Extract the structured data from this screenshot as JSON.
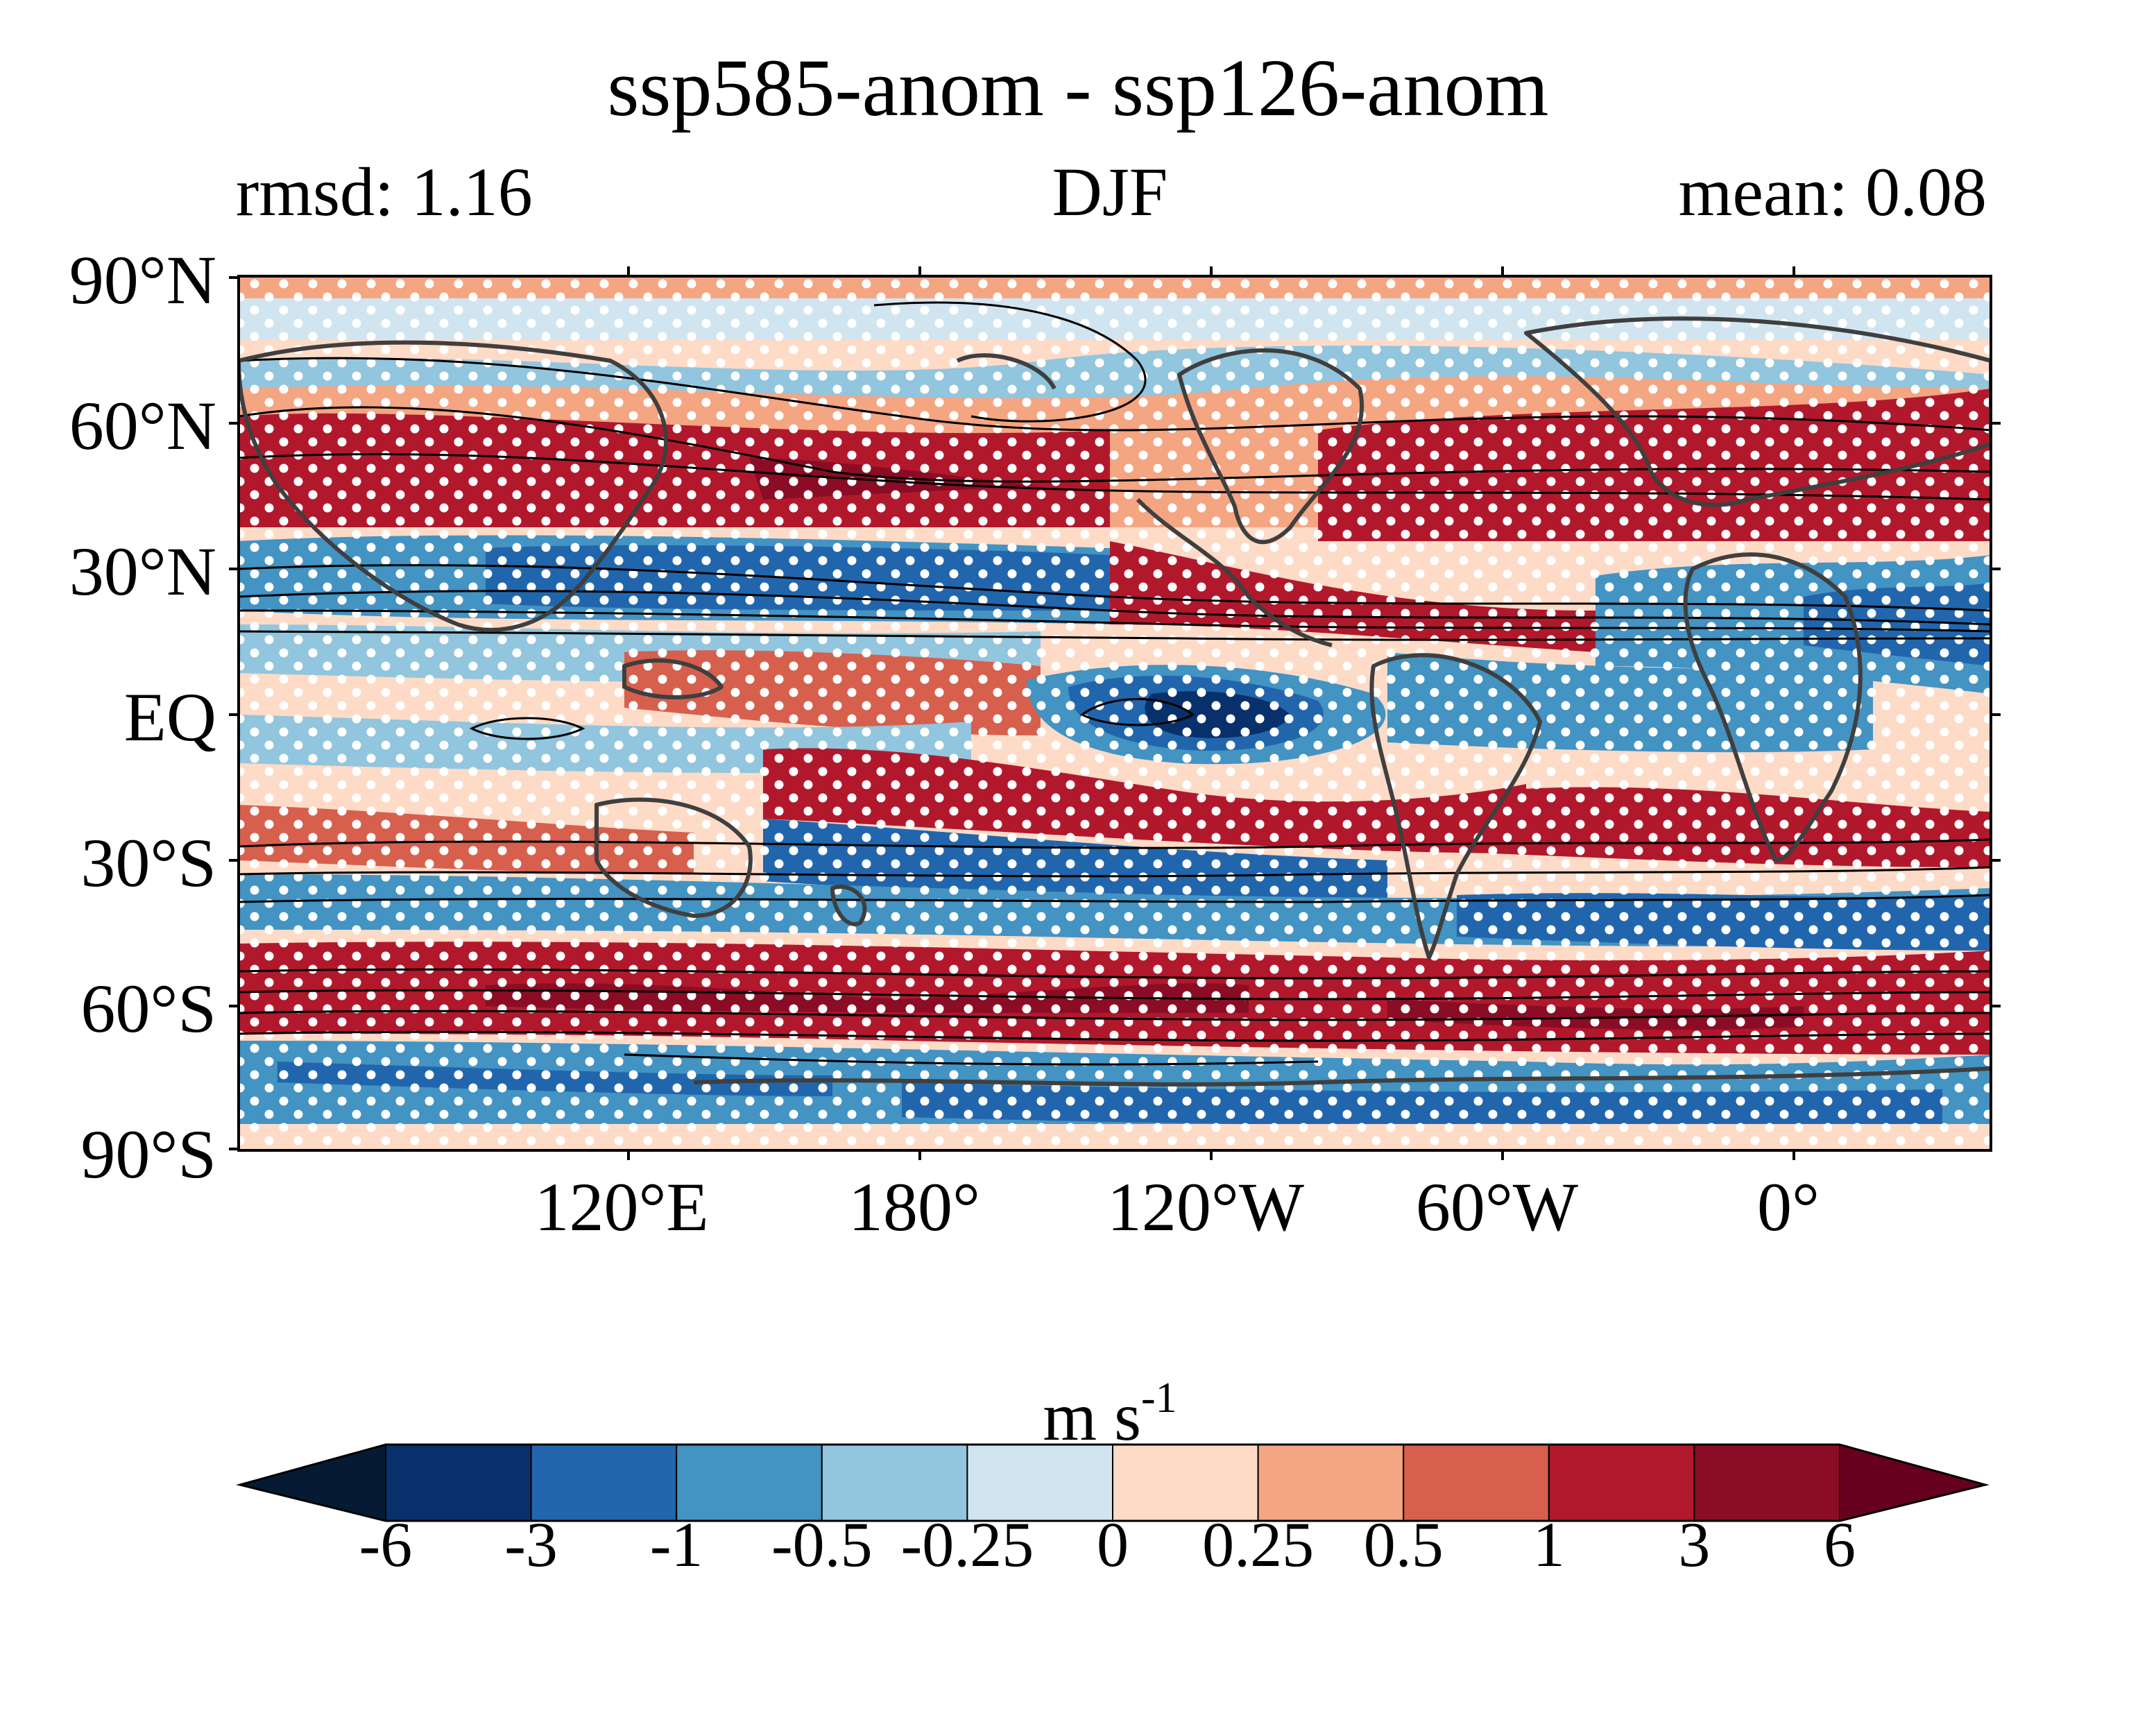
{
  "title": "ssp585-anom - ssp126-anom",
  "subtitle_left": "rmsd: 1.16",
  "subtitle_center": "DJF",
  "subtitle_right": "mean: 0.08",
  "lat_labels": [
    "90°N",
    "60°N",
    "30°N",
    "EQ",
    "30°S",
    "60°S",
    "90°S"
  ],
  "lon_labels": [
    "120°E",
    "180°",
    "120°W",
    "60°W",
    "0°"
  ],
  "colorbar": {
    "unit_base": "m s",
    "unit_exp": "-1",
    "ticks": [
      "-6",
      "-3",
      "-1",
      "-0.5",
      "-0.25",
      "0",
      "0.25",
      "0.5",
      "1",
      "3",
      "6"
    ],
    "colors": [
      "#08306b",
      "#2166ac",
      "#4393c3",
      "#92c5de",
      "#d1e5f0",
      "#fddbc7",
      "#f4a582",
      "#d6604d",
      "#b2182b",
      "#8b0c25"
    ],
    "extend_low_color": "#061a33",
    "extend_high_color": "#67001f"
  },
  "map_colors": {
    "dark_blue": "#08306b",
    "blue": "#2166ac",
    "mid_blue": "#4393c3",
    "light_blue": "#92c5de",
    "pale_blue": "#d1e5f0",
    "pale_red": "#fddbc7",
    "light_red": "#f4a582",
    "mid_red": "#d6604d",
    "red": "#b2182b",
    "dark_red": "#8b0c25"
  }
}
